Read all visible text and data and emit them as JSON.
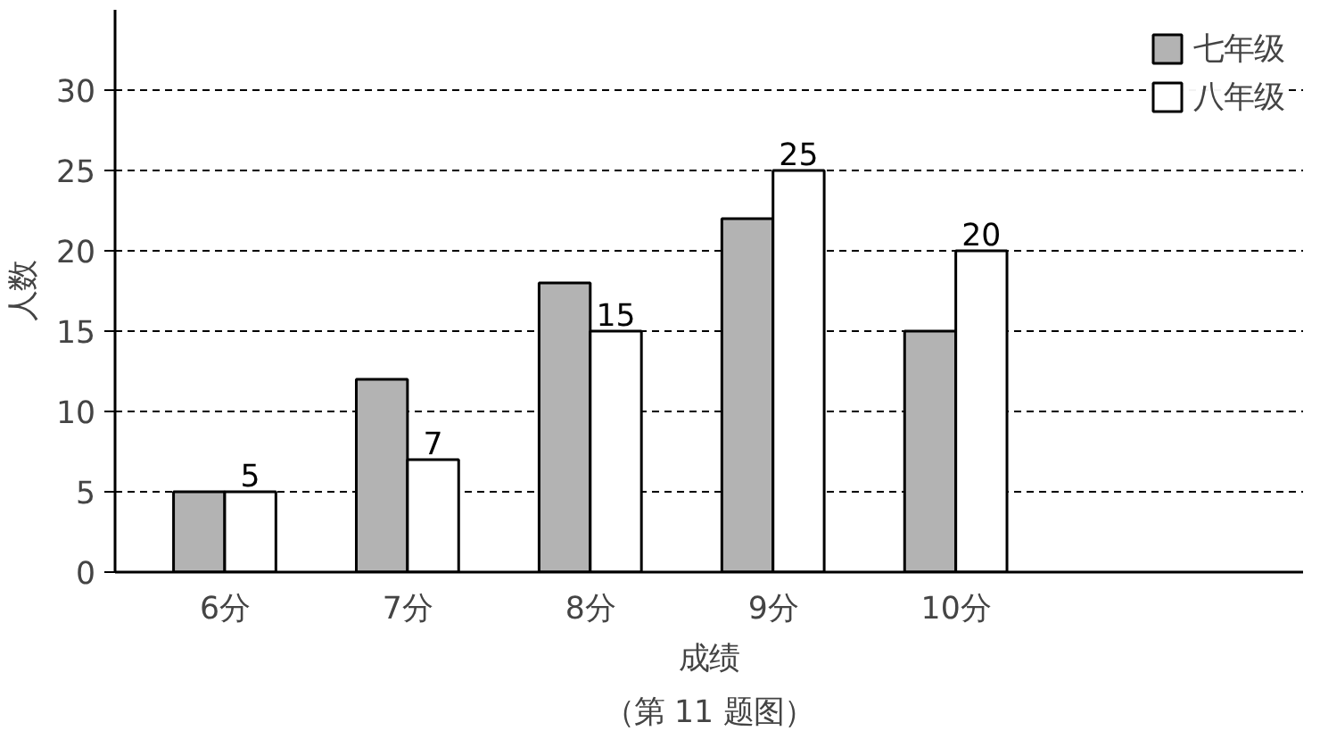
{
  "chart_data": {
    "type": "bar",
    "xlabel": "成绩",
    "ylabel": "人数",
    "annotations": [
      "（第 11 题图）"
    ],
    "categories": [
      "6分",
      "7分",
      "8分",
      "9分",
      "10分"
    ],
    "series": [
      {
        "name": "七年级",
        "color": "#b3b3b3",
        "values": [
          5,
          12,
          18,
          22,
          15
        ]
      },
      {
        "name": "八年级",
        "color": "#ffffff",
        "values": [
          5,
          7,
          15,
          25,
          20
        ],
        "value_labels": [
          "5",
          "7",
          "15",
          "25",
          "20"
        ]
      }
    ],
    "ylim": [
      0,
      35
    ],
    "yticks": [
      0,
      5,
      10,
      15,
      20,
      25,
      30
    ],
    "grid": "y",
    "legend": "top right"
  }
}
